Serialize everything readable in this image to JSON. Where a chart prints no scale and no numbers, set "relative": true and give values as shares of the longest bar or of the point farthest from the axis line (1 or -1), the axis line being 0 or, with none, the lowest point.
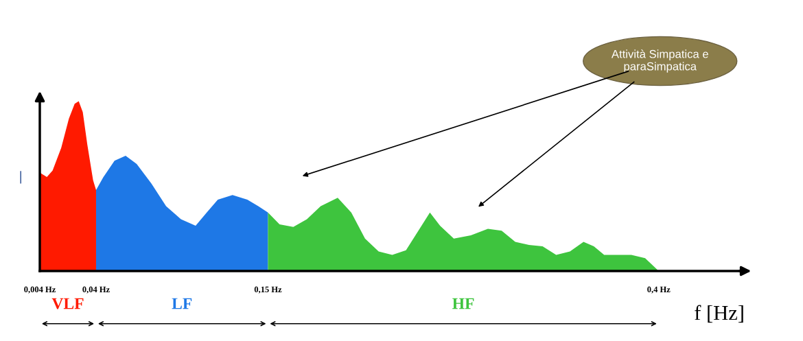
{
  "chart_data": {
    "type": "area",
    "relative": true,
    "xlabel": "f [Hz]",
    "ylabel": "|",
    "xlim": [
      0.004,
      0.455
    ],
    "xticks": [
      {
        "value": 0.004,
        "label": "0,004 Hz"
      },
      {
        "value": 0.04,
        "label": "0,04 Hz"
      },
      {
        "value": 0.15,
        "label": "0,15 Hz"
      },
      {
        "value": 0.4,
        "label": "0,4 Hz"
      }
    ],
    "grid": false,
    "series": [
      {
        "name": "VLF",
        "color": "#ff1a00",
        "x": [
          0.004,
          0.0085,
          0.0122,
          0.0177,
          0.0226,
          0.0263,
          0.0289,
          0.0315,
          0.0344,
          0.0381,
          0.04
        ],
        "values": [
          0.58,
          0.553,
          0.592,
          0.725,
          0.897,
          0.985,
          1.0,
          0.935,
          0.744,
          0.534,
          0.477
        ]
      },
      {
        "name": "LF",
        "color": "#1e78e6",
        "x": [
          0.04,
          0.0447,
          0.0518,
          0.0589,
          0.066,
          0.0754,
          0.0848,
          0.0943,
          0.1037,
          0.1108,
          0.1179,
          0.1273,
          0.1368,
          0.1438,
          0.15
        ],
        "values": [
          0.477,
          0.553,
          0.649,
          0.679,
          0.63,
          0.515,
          0.382,
          0.305,
          0.267,
          0.344,
          0.42,
          0.447,
          0.42,
          0.382,
          0.344
        ]
      },
      {
        "name": "HF",
        "color": "#3ec43e",
        "x": [
          0.15,
          0.1574,
          0.1662,
          0.1749,
          0.1837,
          0.1946,
          0.2033,
          0.2121,
          0.2208,
          0.2295,
          0.2383,
          0.247,
          0.2536,
          0.2601,
          0.2689,
          0.2798,
          0.2907,
          0.2995,
          0.3082,
          0.317,
          0.3257,
          0.3344,
          0.3432,
          0.3519,
          0.3585,
          0.3651,
          0.3738,
          0.3825,
          0.3913,
          0.3978,
          0.4
        ],
        "values": [
          0.344,
          0.275,
          0.26,
          0.305,
          0.382,
          0.431,
          0.344,
          0.191,
          0.115,
          0.095,
          0.122,
          0.248,
          0.344,
          0.267,
          0.191,
          0.21,
          0.248,
          0.237,
          0.172,
          0.153,
          0.145,
          0.095,
          0.115,
          0.172,
          0.145,
          0.095,
          0.095,
          0.095,
          0.076,
          0.019,
          0.0
        ]
      }
    ],
    "annotations": [
      "Attività Simpatica e\nparaSimpatica"
    ]
  }
}
